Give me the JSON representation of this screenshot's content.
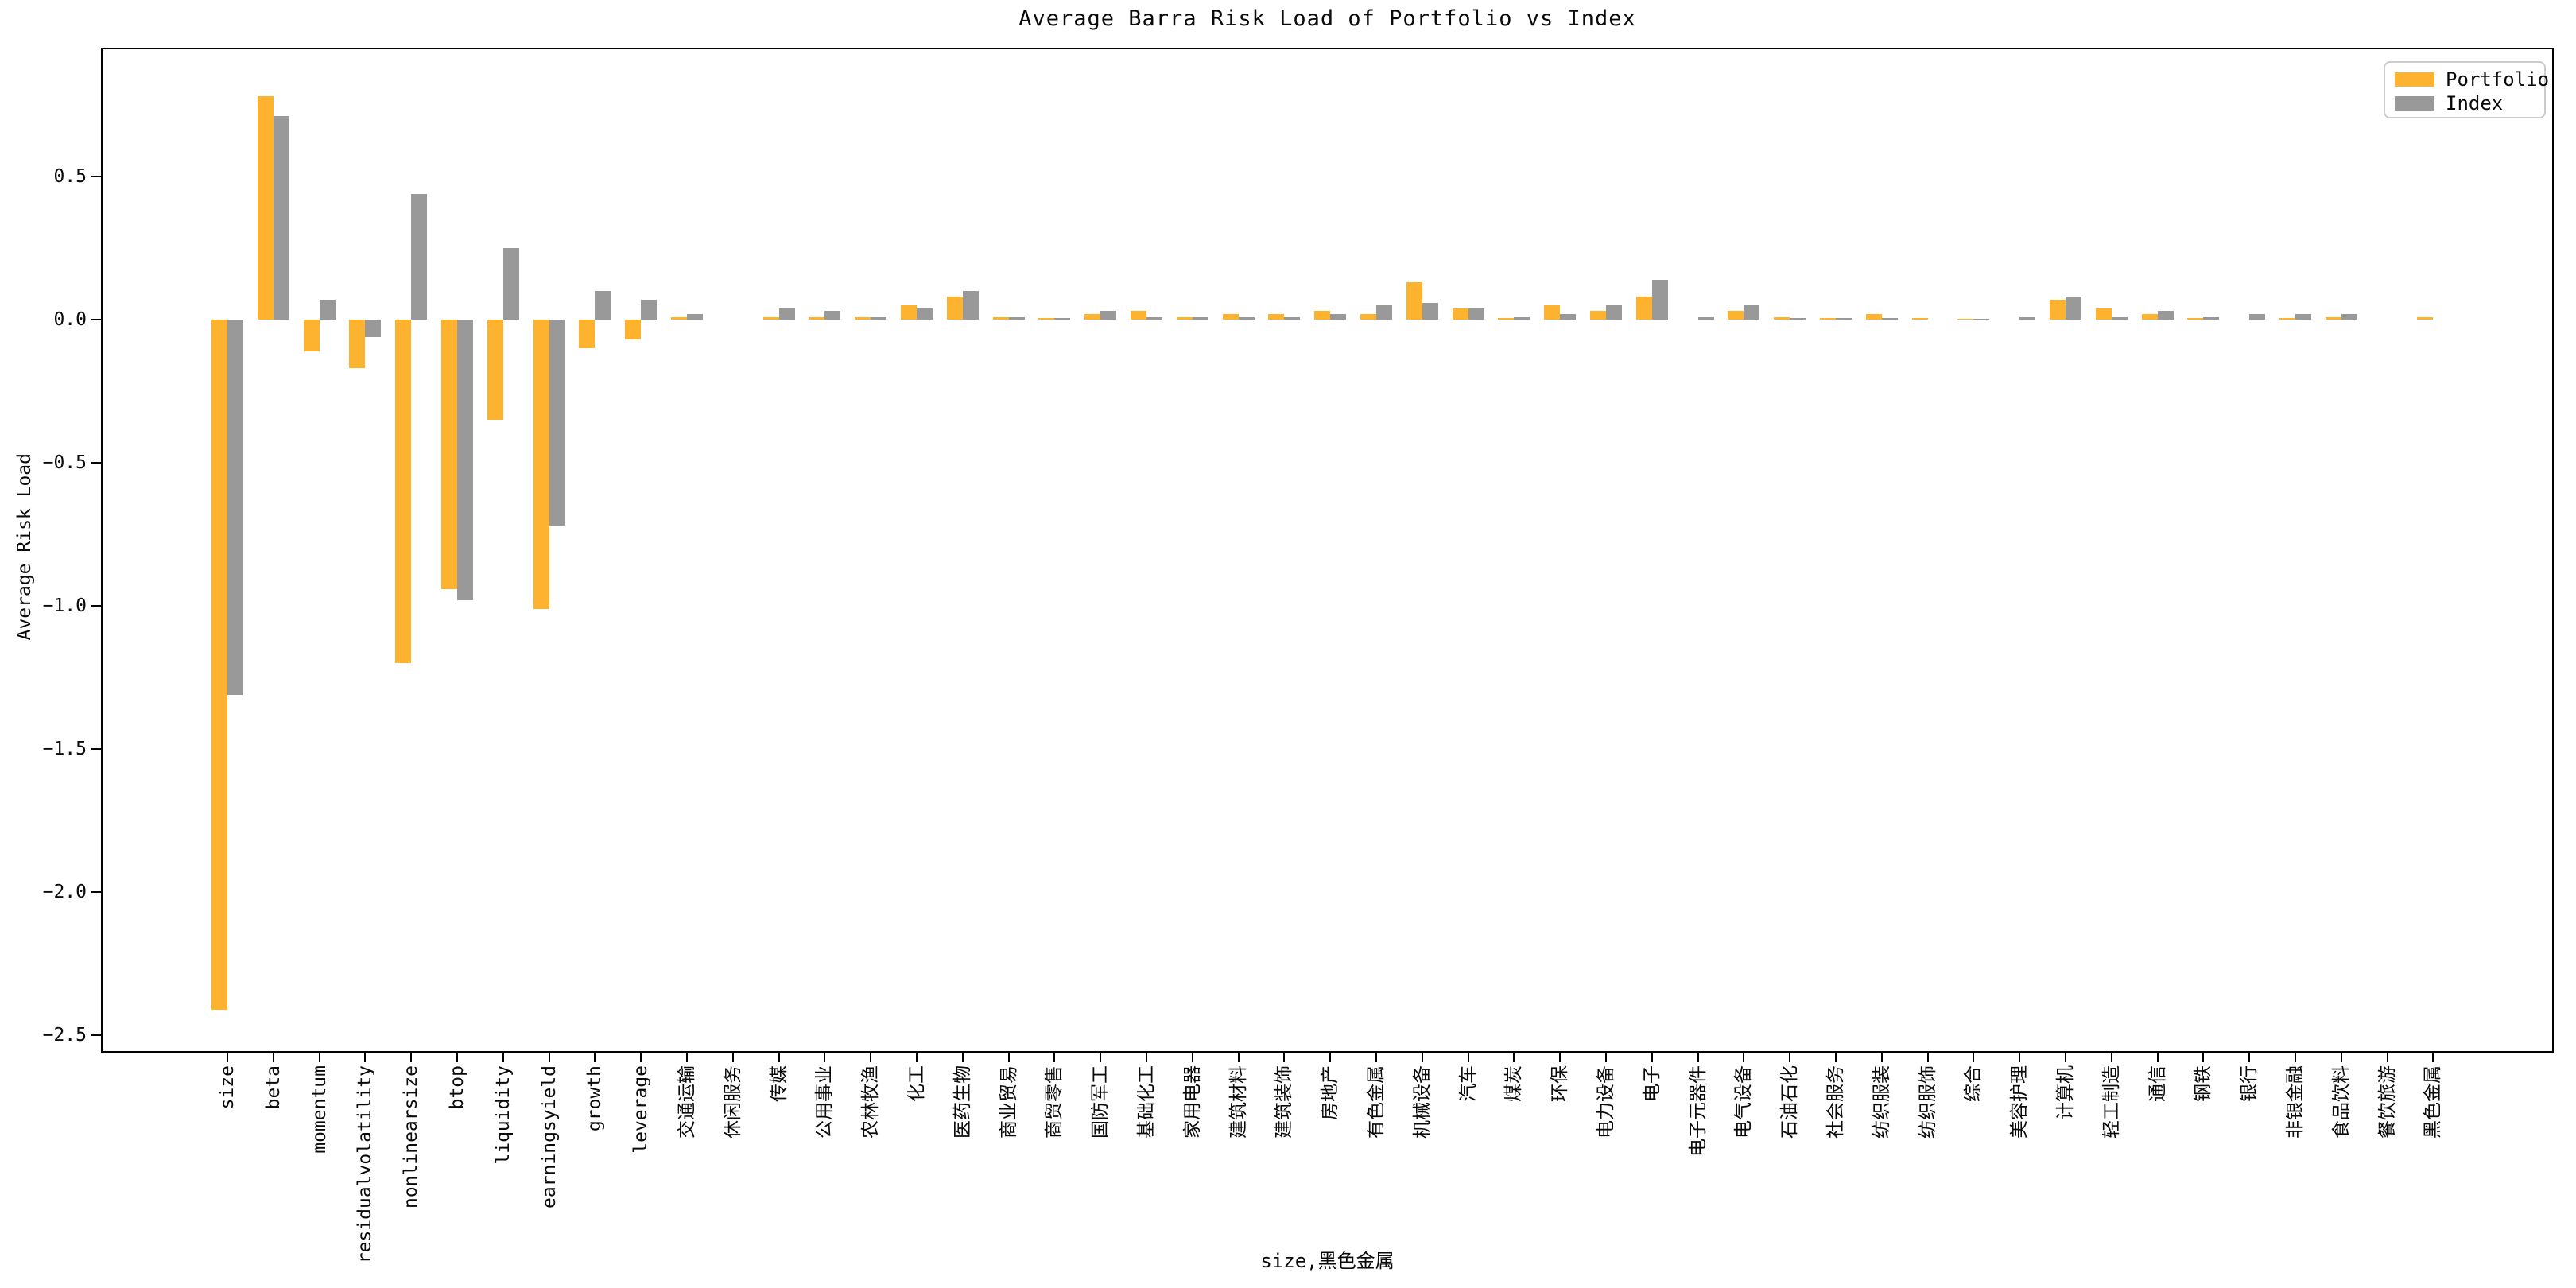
{
  "chart_data": {
    "type": "bar",
    "title": "Average Barra Risk Load of Portfolio vs Index",
    "xlabel": "size,黑色金属",
    "ylabel": "Average Risk Load",
    "ylim": [
      -2.56,
      0.95
    ],
    "grid": false,
    "legend_position": "upper right",
    "yticks": [
      0.5,
      0.0,
      -0.5,
      -1.0,
      -1.5,
      -2.0,
      -2.5
    ],
    "ytick_labels": [
      "0.5",
      "0.0",
      "−0.5",
      "−1.0",
      "−1.5",
      "−2.0",
      "−2.5"
    ],
    "categories": [
      "size",
      "beta",
      "momentum",
      "residualvolatility",
      "nonlinearsize",
      "btop",
      "liquidity",
      "earningsyield",
      "growth",
      "leverage",
      "交通运输",
      "休闲服务",
      "传媒",
      "公用事业",
      "农林牧渔",
      "化工",
      "医药生物",
      "商业贸易",
      "商贸零售",
      "国防军工",
      "基础化工",
      "家用电器",
      "建筑材料",
      "建筑装饰",
      "房地产",
      "有色金属",
      "机械设备",
      "汽车",
      "煤炭",
      "环保",
      "电力设备",
      "电子",
      "电子元器件",
      "电气设备",
      "石油石化",
      "社会服务",
      "纺织服装",
      "纺织服饰",
      "综合",
      "美容护理",
      "计算机",
      "轻工制造",
      "通信",
      "钢铁",
      "银行",
      "非银金融",
      "食品饮料",
      "餐饮旅游",
      "黑色金属"
    ],
    "series": [
      {
        "name": "Portfolio",
        "color": "#FDB32F",
        "values": [
          -2.41,
          0.78,
          -0.11,
          -0.17,
          -1.2,
          -0.94,
          -0.35,
          -1.01,
          -0.1,
          -0.07,
          0.01,
          0.0,
          0.01,
          0.01,
          0.01,
          0.05,
          0.08,
          0.01,
          0.005,
          0.02,
          0.03,
          0.01,
          0.02,
          0.02,
          0.03,
          0.02,
          0.13,
          0.04,
          0.005,
          0.05,
          0.03,
          0.08,
          0.0,
          0.03,
          0.01,
          0.005,
          0.02,
          0.005,
          0.003,
          0.0,
          0.07,
          0.04,
          0.02,
          0.005,
          0.0,
          0.005,
          0.01,
          0.0,
          0.01
        ]
      },
      {
        "name": "Index",
        "color": "#999999",
        "values": [
          -1.31,
          0.71,
          0.07,
          -0.06,
          0.44,
          -0.98,
          0.25,
          -0.72,
          0.1,
          0.07,
          0.02,
          0.0,
          0.04,
          0.03,
          0.01,
          0.04,
          0.1,
          0.01,
          0.005,
          0.03,
          0.01,
          0.01,
          0.01,
          0.01,
          0.02,
          0.05,
          0.06,
          0.04,
          0.01,
          0.02,
          0.05,
          0.14,
          0.01,
          0.05,
          0.005,
          0.005,
          0.005,
          0.0,
          0.003,
          0.01,
          0.08,
          0.01,
          0.03,
          0.01,
          0.02,
          0.02,
          0.02,
          0.0,
          0.0
        ]
      }
    ]
  }
}
